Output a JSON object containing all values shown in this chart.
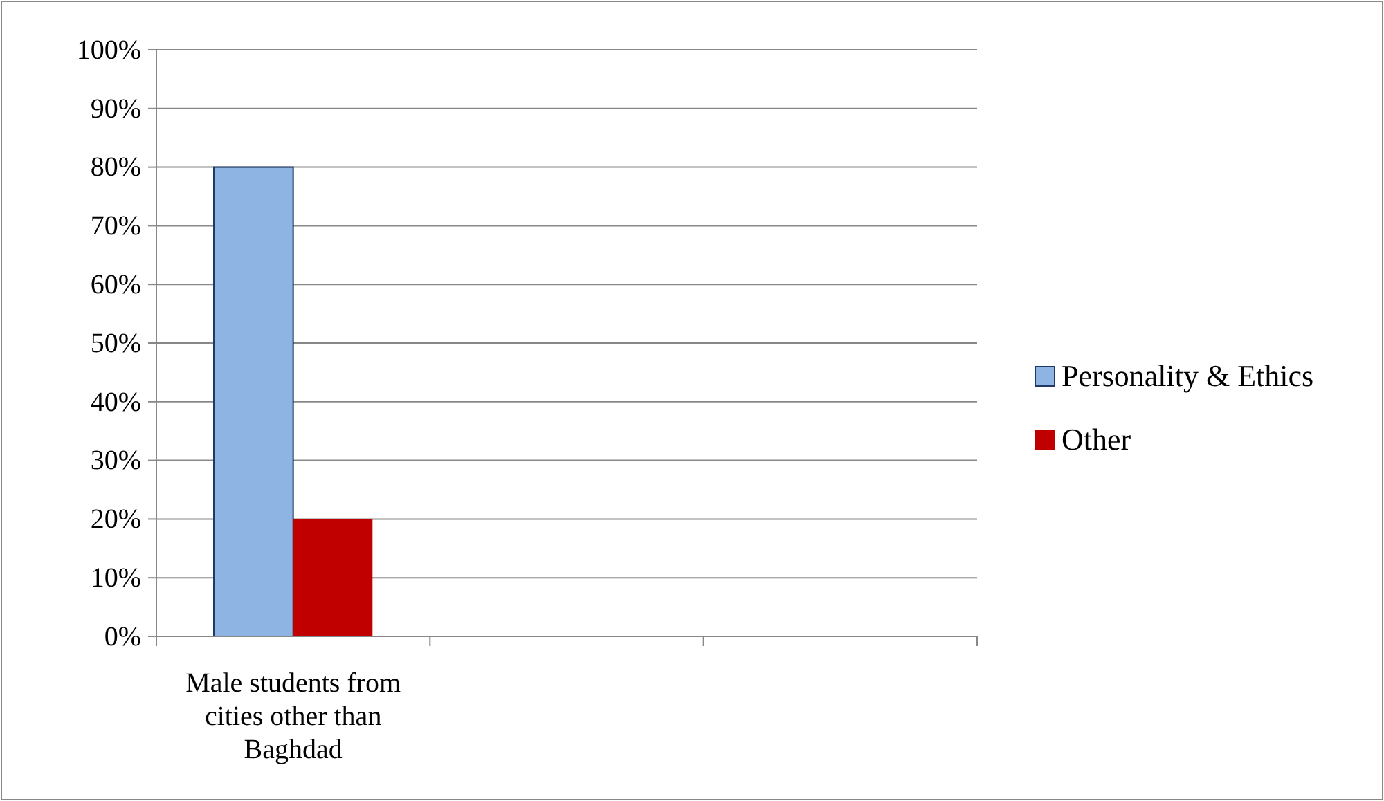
{
  "chart_data": {
    "type": "bar",
    "categories": [
      "Male students from cities other than Baghdad",
      null,
      null
    ],
    "series": [
      {
        "name": "Personality & Ethics",
        "color": "#8eb4e3",
        "values": [
          80,
          null,
          null
        ]
      },
      {
        "name": "Other",
        "color": "#c00000",
        "values": [
          20,
          null,
          null
        ]
      }
    ],
    "ylim": [
      0,
      100
    ],
    "yticks": [
      {
        "value": 0,
        "label": "0%"
      },
      {
        "value": 10,
        "label": "10%"
      },
      {
        "value": 20,
        "label": "20%"
      },
      {
        "value": 30,
        "label": "30%"
      },
      {
        "value": 40,
        "label": "40%"
      },
      {
        "value": 50,
        "label": "50%"
      },
      {
        "value": 60,
        "label": "60%"
      },
      {
        "value": 70,
        "label": "70%"
      },
      {
        "value": 80,
        "label": "80%"
      },
      {
        "value": 90,
        "label": "90%"
      },
      {
        "value": 100,
        "label": "100%"
      }
    ],
    "grid": "y",
    "legend": "right"
  }
}
